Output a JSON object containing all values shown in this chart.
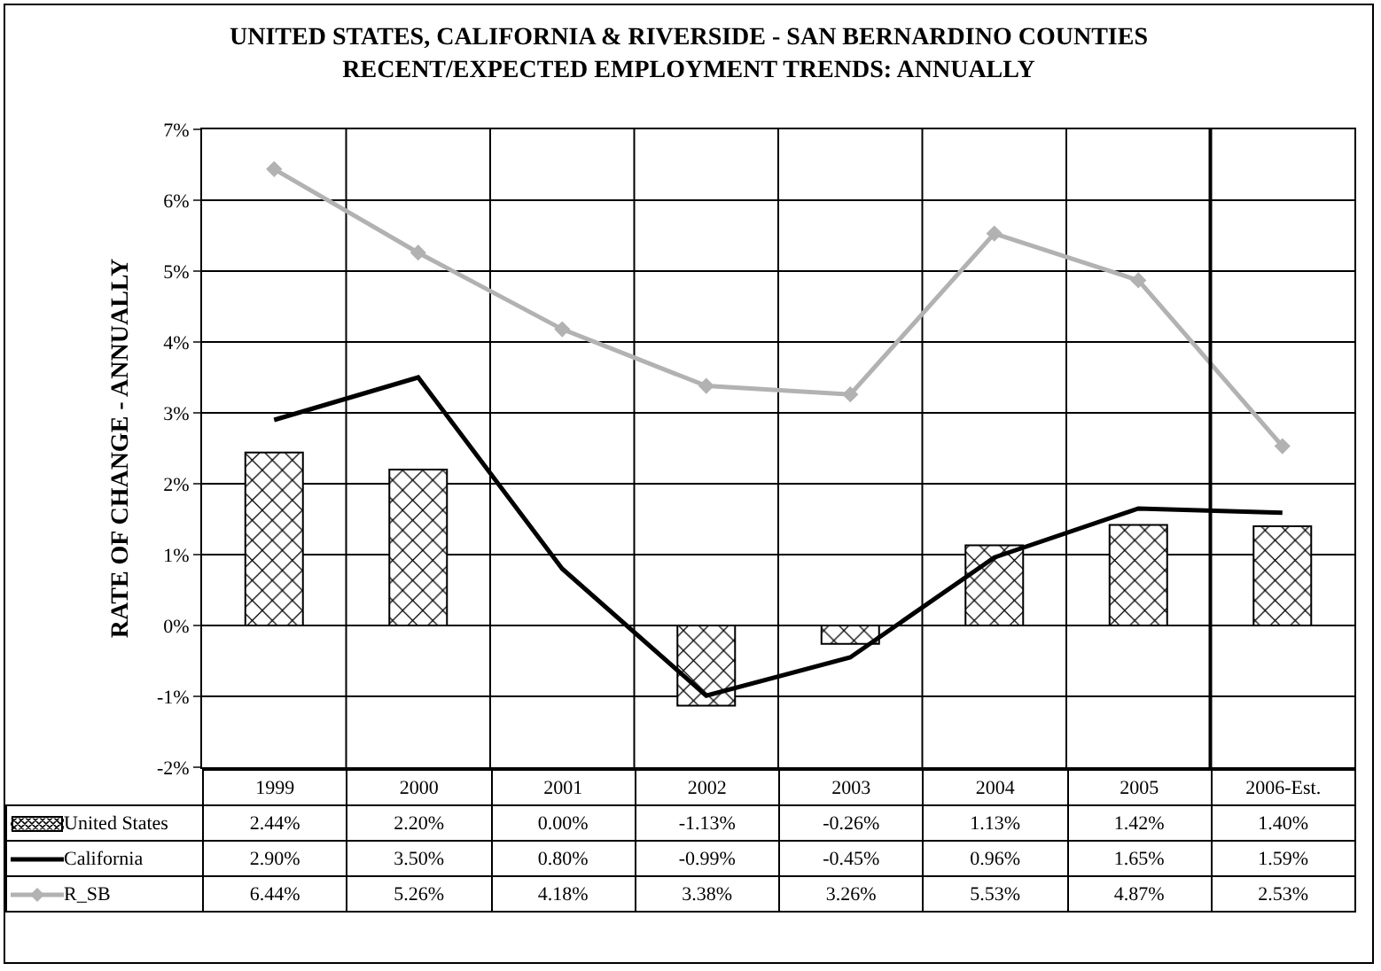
{
  "chart_data": {
    "type": "bar",
    "title": "UNITED STATES, CALIFORNIA & RIVERSIDE - SAN BERNARDINO COUNTIES\nRECENT/EXPECTED EMPLOYMENT TRENDS: ANNUALLY",
    "ylabel": "RATE OF CHANGE - ANNUALLY",
    "categories": [
      "1999",
      "2000",
      "2001",
      "2002",
      "2003",
      "2004",
      "2005",
      "2006-Est."
    ],
    "series": [
      {
        "name": "United States",
        "color": "#000000",
        "values": [
          2.44,
          2.2,
          0.0,
          -1.13,
          -0.26,
          1.13,
          1.42,
          1.4
        ],
        "value_labels": [
          "2.44%",
          "2.20%",
          "0.00%",
          "-1.13%",
          "-0.26%",
          "1.13%",
          "1.42%",
          "1.40%"
        ]
      },
      {
        "name": "California",
        "type": "line",
        "color": "#000000",
        "marker": "none",
        "values": [
          2.9,
          3.5,
          0.8,
          -0.99,
          -0.45,
          0.96,
          1.65,
          1.59
        ],
        "value_labels": [
          "2.90%",
          "3.50%",
          "0.80%",
          "-0.99%",
          "-0.45%",
          "0.96%",
          "1.65%",
          "1.59%"
        ]
      },
      {
        "name": "R_SB",
        "type": "line",
        "color": "#b2b2b2",
        "marker": "diamond",
        "values": [
          6.44,
          5.26,
          4.18,
          3.38,
          3.26,
          5.53,
          4.87,
          2.53
        ],
        "value_labels": [
          "6.44%",
          "5.26%",
          "4.18%",
          "3.38%",
          "3.26%",
          "5.53%",
          "4.87%",
          "2.53%"
        ]
      }
    ],
    "ylim": [
      -2,
      7
    ],
    "yticks": [
      {
        "value": -2,
        "label": "-2%"
      },
      {
        "value": -1,
        "label": "-1%"
      },
      {
        "value": 0,
        "label": "0%"
      },
      {
        "value": 1,
        "label": "1%"
      },
      {
        "value": 2,
        "label": "2%"
      },
      {
        "value": 3,
        "label": "3%"
      },
      {
        "value": 4,
        "label": "4%"
      },
      {
        "value": 5,
        "label": "5%"
      },
      {
        "value": 6,
        "label": "6%"
      },
      {
        "value": 7,
        "label": "7%"
      }
    ],
    "ref_lines": [
      {
        "axis": "x",
        "value": "2006-Est.",
        "color": "#000000"
      }
    ],
    "grid": true,
    "legend": "bottom"
  }
}
